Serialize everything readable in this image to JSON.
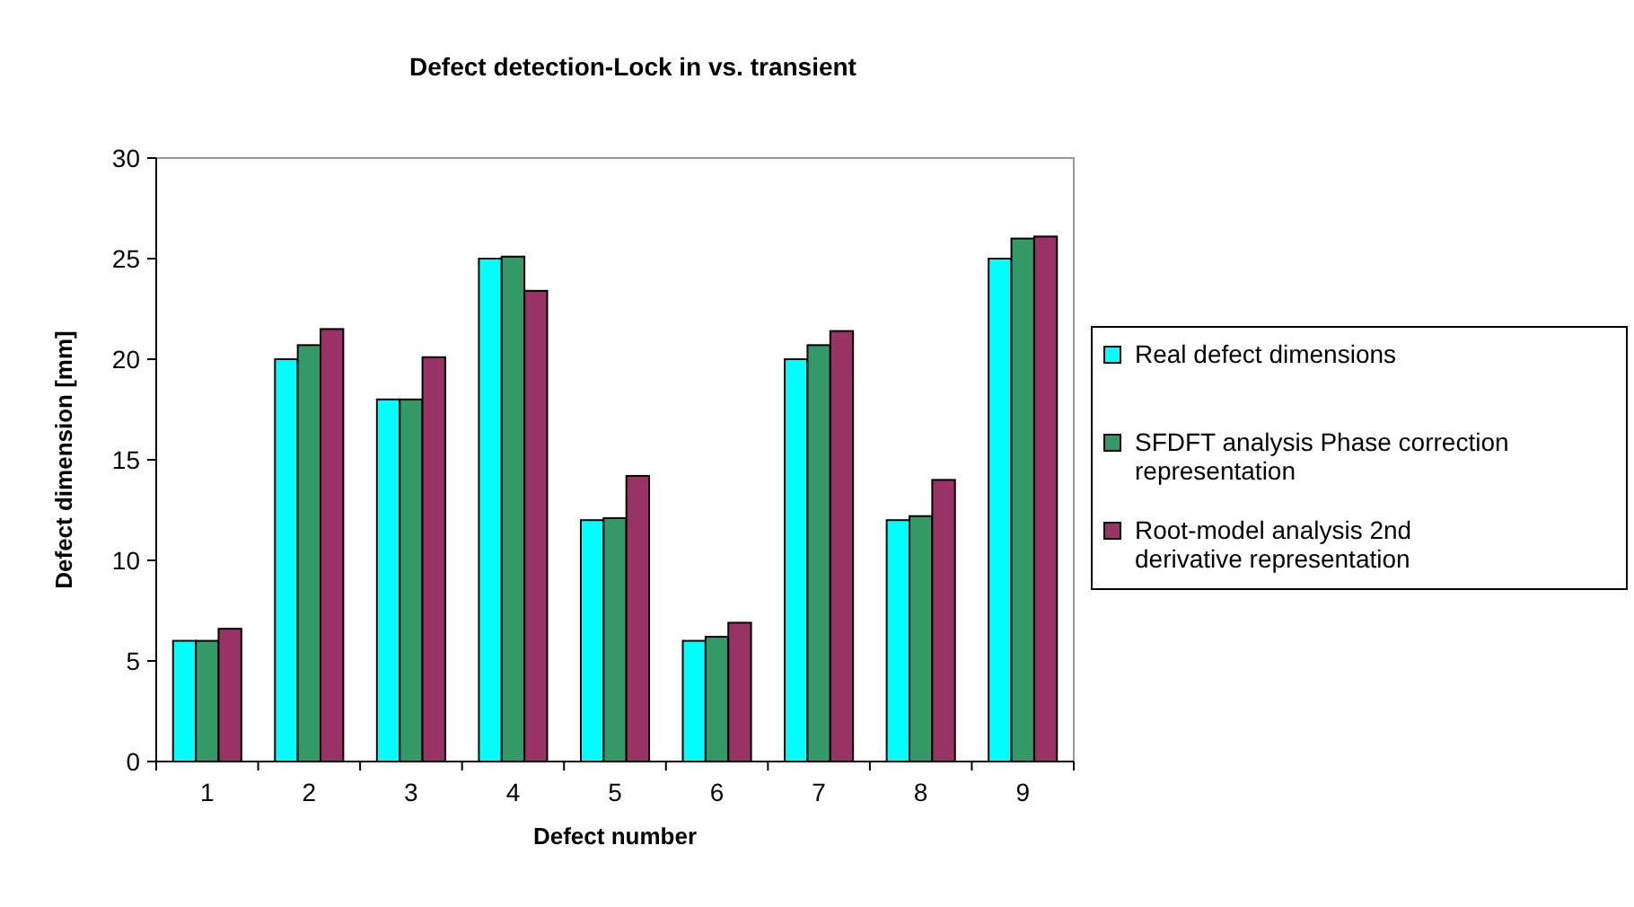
{
  "chart_data": {
    "type": "bar",
    "title": "Defect detection-Lock in vs. transient",
    "xlabel": "Defect number",
    "ylabel": "Defect dimension [mm]",
    "categories": [
      "1",
      "2",
      "3",
      "4",
      "5",
      "6",
      "7",
      "8",
      "9"
    ],
    "series": [
      {
        "name": "Real defect dimensions",
        "color": "#00ffff",
        "values": [
          6,
          20,
          18,
          25,
          12,
          6,
          20,
          12,
          25
        ]
      },
      {
        "name": "SFDFT analysis Phase correction representation",
        "color": "#339966",
        "values": [
          6,
          20.7,
          18,
          25.1,
          12.1,
          6.2,
          20.7,
          12.2,
          26
        ]
      },
      {
        "name": "Root-model analysis 2nd derivative representation",
        "color": "#993366",
        "values": [
          6.6,
          21.5,
          20.1,
          23.4,
          14.2,
          6.9,
          21.4,
          14,
          26.1
        ]
      }
    ],
    "ylim": [
      0,
      30
    ],
    "yticks": [
      0,
      5,
      10,
      15,
      20,
      25,
      30
    ],
    "grid": false,
    "legend": "right"
  }
}
